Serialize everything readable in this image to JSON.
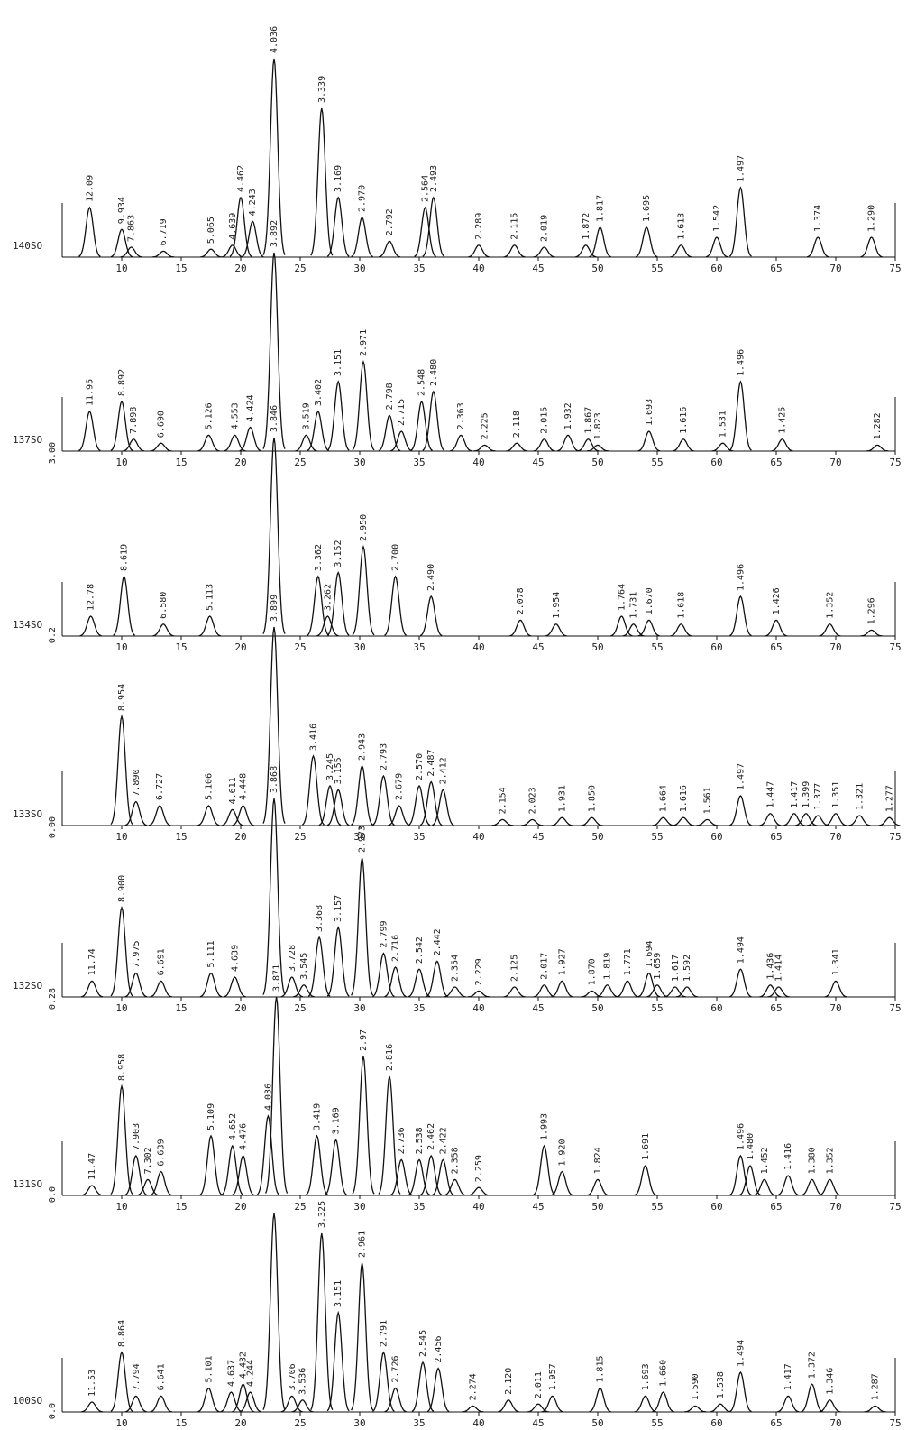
{
  "chart_data": [
    {
      "type": "peaks",
      "label": "140SO",
      "color": "#111",
      "xlim": [
        5,
        75
      ],
      "xticks": [
        10,
        15,
        20,
        25,
        30,
        35,
        40,
        45,
        50,
        55,
        60,
        65,
        70,
        75
      ],
      "x": [
        7.3,
        10.0,
        10.8,
        13.5,
        17.5,
        19.3,
        20.0,
        21.0,
        22.8,
        26.8,
        28.2,
        30.2,
        32.5,
        35.5,
        36.2,
        40.0,
        43.0,
        45.5,
        49.0,
        50.2,
        54.1,
        57.0,
        60.0,
        62.0,
        68.5,
        73.0
      ],
      "values": [
        25,
        14,
        5,
        3,
        4,
        6,
        30,
        18,
        100,
        75,
        30,
        20,
        8,
        25,
        30,
        6,
        6,
        5,
        6,
        15,
        15,
        6,
        10,
        35,
        10,
        10
      ],
      "peak_labels": [
        "12.09",
        "9.934",
        "7.863",
        "6.719",
        "5.065",
        "4.639",
        "4.462",
        "4.243",
        "4.036",
        "3.339",
        "3.169",
        "2.970",
        "2.792",
        "2.564",
        "2.493",
        "2.289",
        "2.115",
        "2.019",
        "1.872",
        "1.817",
        "1.695",
        "1.613",
        "1.542",
        "1.497",
        "1.374",
        "1.290"
      ]
    },
    {
      "type": "peaks",
      "label": "137SO",
      "baseline_label": "3.00",
      "color": "#111",
      "xlim": [
        5,
        75
      ],
      "xticks": [
        10,
        15,
        20,
        25,
        30,
        35,
        40,
        45,
        50,
        55,
        60,
        65,
        70,
        75
      ],
      "x": [
        7.3,
        10.0,
        11.0,
        13.3,
        17.3,
        19.5,
        20.8,
        22.8,
        25.5,
        26.5,
        28.2,
        30.3,
        32.5,
        33.5,
        35.2,
        36.2,
        38.5,
        40.5,
        43.2,
        45.5,
        47.5,
        49.2,
        50.0,
        54.3,
        57.2,
        60.5,
        62.0,
        65.5,
        73.5
      ],
      "values": [
        20,
        25,
        6,
        4,
        8,
        8,
        12,
        100,
        8,
        20,
        35,
        45,
        18,
        10,
        25,
        30,
        8,
        3,
        4,
        6,
        8,
        6,
        3,
        10,
        6,
        4,
        35,
        6,
        3
      ],
      "peak_labels": [
        "11.95",
        "8.892",
        "7.898",
        "6.690",
        "5.126",
        "4.553",
        "4.424",
        "3.892",
        "3.519",
        "3.402",
        "3.151",
        "2.971",
        "2.798",
        "2.715",
        "2.548",
        "2.480",
        "2.363",
        "2.225",
        "2.118",
        "2.015",
        "1.932",
        "1.867",
        "1.823",
        "1.693",
        "1.616",
        "1.531",
        "1.496",
        "1.425",
        "1.282"
      ]
    },
    {
      "type": "peaks",
      "label": "134SO",
      "baseline_label": "0.2",
      "color": "#111",
      "xlim": [
        5,
        75
      ],
      "xticks": [
        10,
        15,
        20,
        25,
        30,
        35,
        40,
        45,
        50,
        55,
        60,
        65,
        70,
        75
      ],
      "x": [
        7.4,
        10.2,
        13.5,
        17.4,
        22.8,
        26.5,
        27.3,
        28.2,
        30.3,
        33.0,
        36.0,
        43.5,
        46.5,
        52.0,
        53.0,
        54.3,
        57.0,
        62.0,
        65.0,
        69.5,
        73.0
      ],
      "values": [
        10,
        30,
        6,
        10,
        100,
        30,
        10,
        32,
        45,
        30,
        20,
        8,
        6,
        10,
        6,
        8,
        6,
        20,
        8,
        6,
        3
      ],
      "peak_labels": [
        "12.78",
        "8.619",
        "6.580",
        "5.113",
        "3.846",
        "3.362",
        "3.262",
        "3.152",
        "2.950",
        "2.700",
        "2.490",
        "2.078",
        "1.954",
        "1.764",
        "1.731",
        "1.670",
        "1.618",
        "1.496",
        "1.426",
        "1.352",
        "1.296"
      ]
    },
    {
      "type": "peaks",
      "label": "133SO",
      "baseline_label": "0.00",
      "color": "#111",
      "xlim": [
        5,
        75
      ],
      "xticks": [
        10,
        15,
        20,
        25,
        30,
        35,
        40,
        45,
        50,
        55,
        60,
        65,
        70,
        75
      ],
      "x": [
        10.0,
        11.2,
        13.2,
        17.3,
        19.3,
        20.2,
        22.8,
        26.1,
        27.5,
        28.2,
        30.2,
        32.0,
        33.3,
        35.0,
        36.0,
        37.0,
        42.0,
        44.5,
        47.0,
        49.5,
        55.5,
        57.2,
        59.2,
        62.0,
        64.5,
        66.5,
        67.5,
        68.5,
        70.0,
        72.0,
        74.5
      ],
      "values": [
        55,
        12,
        10,
        10,
        8,
        10,
        100,
        35,
        20,
        18,
        30,
        25,
        10,
        20,
        22,
        18,
        3,
        3,
        4,
        4,
        4,
        4,
        3,
        15,
        6,
        6,
        6,
        5,
        6,
        5,
        4
      ],
      "peak_labels": [
        "8.954",
        "7.890",
        "6.727",
        "5.106",
        "4.611",
        "4.448",
        "3.899",
        "3.416",
        "3.245",
        "3.155",
        "2.943",
        "2.793",
        "2.679",
        "2.570",
        "2.487",
        "2.412",
        "2.154",
        "2.023",
        "1.931",
        "1.850",
        "1.664",
        "1.616",
        "1.561",
        "1.497",
        "1.447",
        "1.417",
        "1.399",
        "1.377",
        "1.351",
        "1.321",
        "1.277"
      ]
    },
    {
      "type": "peaks",
      "label": "132SO",
      "baseline_label": "0.28",
      "color": "#111",
      "xlim": [
        5,
        75
      ],
      "xticks": [
        10,
        15,
        20,
        25,
        30,
        35,
        40,
        45,
        50,
        55,
        60,
        65,
        70,
        75
      ],
      "x": [
        7.5,
        10.0,
        11.2,
        13.3,
        17.5,
        19.5,
        22.8,
        24.3,
        25.3,
        26.6,
        28.2,
        30.2,
        32.0,
        33.0,
        35.0,
        36.5,
        38.0,
        40.0,
        43.0,
        45.5,
        47.0,
        49.5,
        50.8,
        52.5,
        54.3,
        55.0,
        56.5,
        57.5,
        62.0,
        64.5,
        65.2,
        70.0
      ],
      "values": [
        8,
        45,
        12,
        8,
        12,
        10,
        100,
        10,
        6,
        30,
        35,
        70,
        22,
        15,
        14,
        18,
        5,
        3,
        5,
        6,
        8,
        3,
        6,
        8,
        12,
        6,
        5,
        5,
        14,
        6,
        5,
        8
      ],
      "peak_labels": [
        "11.74",
        "8.900",
        "7.975",
        "6.691",
        "5.111",
        "4.639",
        "3.868",
        "3.728",
        "3.545",
        "3.368",
        "3.157",
        "2.973",
        "2.799",
        "2.716",
        "2.542",
        "2.442",
        "2.354",
        "2.229",
        "2.125",
        "2.017",
        "1.927",
        "1.870",
        "1.819",
        "1.771",
        "1.694",
        "1.659",
        "1.617",
        "1.592",
        "1.494",
        "1.436",
        "1.414",
        "1.341"
      ]
    },
    {
      "type": "peaks",
      "label": "131SO",
      "baseline_label": "0.0",
      "color": "#111",
      "xlim": [
        5,
        75
      ],
      "xticks": [
        10,
        15,
        20,
        25,
        30,
        35,
        40,
        45,
        50,
        55,
        60,
        65,
        70,
        75
      ],
      "x": [
        7.5,
        10.0,
        11.2,
        12.2,
        13.3,
        17.5,
        19.3,
        20.2,
        22.3,
        23.0,
        26.4,
        28.0,
        30.3,
        32.5,
        33.5,
        35.0,
        36.0,
        37.0,
        38.0,
        40.0,
        45.5,
        47.0,
        50.0,
        54.0,
        62.0,
        62.8,
        64.0,
        66.0,
        68.0,
        69.5
      ],
      "values": [
        5,
        55,
        20,
        8,
        12,
        30,
        25,
        20,
        40,
        100,
        30,
        28,
        70,
        60,
        18,
        18,
        20,
        18,
        8,
        4,
        25,
        12,
        8,
        15,
        20,
        15,
        8,
        10,
        8,
        8
      ],
      "peak_labels": [
        "11.47",
        "8.958",
        "7.903",
        "7.302",
        "6.639",
        "5.109",
        "4.652",
        "4.476",
        "4.036",
        "3.871",
        "3.419",
        "3.169",
        "2.97",
        "2.816",
        "2.736",
        "2.538",
        "2.462",
        "2.422",
        "2.358",
        "2.259",
        "1.993",
        "1.920",
        "1.824",
        "1.691",
        "1.496",
        "1.480",
        "1.452",
        "1.416",
        "1.380",
        "1.352"
      ]
    },
    {
      "type": "peaks",
      "label": "100SO",
      "baseline_label": "0.0",
      "color": "#111",
      "xlim": [
        5,
        75
      ],
      "xticks": [
        10,
        15,
        20,
        25,
        30,
        35,
        40,
        45,
        50,
        55,
        60,
        65,
        70,
        75
      ],
      "x": [
        7.5,
        10.0,
        11.2,
        13.3,
        17.3,
        19.2,
        20.2,
        20.8,
        22.8,
        24.3,
        25.2,
        26.8,
        28.2,
        30.2,
        32.0,
        33.0,
        35.3,
        36.6,
        39.5,
        42.5,
        45.0,
        46.2,
        50.2,
        54.0,
        55.5,
        58.2,
        60.3,
        62.0,
        66.0,
        68.0,
        69.5,
        73.3
      ],
      "values": [
        5,
        30,
        8,
        8,
        12,
        10,
        14,
        10,
        100,
        8,
        6,
        90,
        50,
        75,
        30,
        12,
        25,
        22,
        3,
        6,
        4,
        8,
        12,
        8,
        10,
        3,
        4,
        20,
        8,
        14,
        6,
        3
      ],
      "peak_labels": [
        "11.53",
        "8.864",
        "7.794",
        "6.641",
        "5.101",
        "4.637",
        "4.432",
        "4.244",
        null,
        "3.706",
        "3.536",
        "3.325",
        "3.151",
        "2.961",
        "2.791",
        "2.726",
        "2.545",
        "2.456",
        "2.274",
        "2.120",
        "2.011",
        "1.957",
        "1.815",
        "1.693",
        "1.660",
        "1.590",
        "1.538",
        "1.494",
        "1.417",
        "1.372",
        "1.346",
        "1.287"
      ]
    }
  ]
}
